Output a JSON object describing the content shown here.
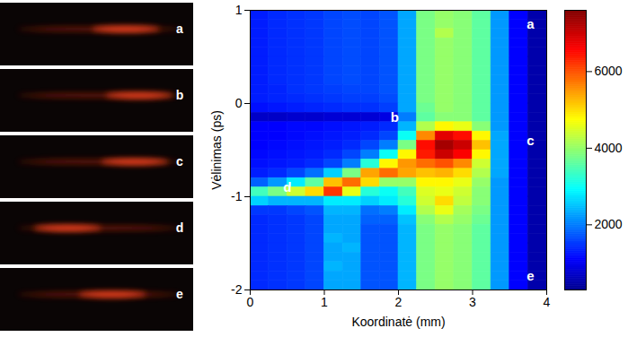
{
  "chart_data": {
    "type": "heatmap",
    "xlabel": "Koordinatė (mm)",
    "ylabel": "Vėlinimas (ps)",
    "xlim": [
      0,
      4
    ],
    "ylim": [
      -2,
      1
    ],
    "xticks": [
      0,
      1,
      2,
      3,
      4
    ],
    "yticks": [
      -2,
      -1,
      0,
      1
    ],
    "x": [
      0.125,
      0.375,
      0.625,
      0.875,
      1.125,
      1.375,
      1.625,
      1.875,
      2.125,
      2.375,
      2.625,
      2.875,
      3.125,
      3.375,
      3.625,
      3.875
    ],
    "y": [
      0.95,
      0.85,
      0.75,
      0.65,
      0.55,
      0.45,
      0.35,
      0.25,
      0.15,
      0.05,
      -0.05,
      -0.15,
      -0.25,
      -0.35,
      -0.45,
      -0.55,
      -0.65,
      -0.75,
      -0.85,
      -0.95,
      -1.05,
      -1.15,
      -1.25,
      -1.35,
      -1.45,
      -1.55,
      -1.65,
      -1.75,
      -1.85,
      -1.95
    ],
    "values": [
      [
        1300,
        1400,
        1450,
        1500,
        1600,
        1650,
        1600,
        1700,
        2300,
        3800,
        4000,
        3900,
        3600,
        2200,
        1100,
        500
      ],
      [
        1300,
        1400,
        1450,
        1500,
        1600,
        1650,
        1600,
        1700,
        2300,
        3800,
        4000,
        3900,
        3600,
        2200,
        1100,
        500
      ],
      [
        1300,
        1400,
        1450,
        1500,
        1600,
        1650,
        1600,
        1700,
        2300,
        3800,
        4200,
        3900,
        3600,
        2200,
        1100,
        500
      ],
      [
        1300,
        1400,
        1450,
        1500,
        1600,
        1650,
        1600,
        1700,
        2300,
        3800,
        4000,
        3900,
        3600,
        2200,
        1100,
        500
      ],
      [
        1300,
        1400,
        1450,
        1500,
        1600,
        1650,
        1600,
        1700,
        2300,
        3800,
        4000,
        3900,
        3600,
        2200,
        1100,
        500
      ],
      [
        1300,
        1400,
        1450,
        1500,
        1600,
        1650,
        1600,
        1700,
        2300,
        3800,
        4000,
        3900,
        3600,
        2200,
        1100,
        500
      ],
      [
        1300,
        1400,
        1450,
        1500,
        1600,
        1650,
        1600,
        1700,
        2300,
        3800,
        4000,
        3900,
        3600,
        2200,
        1100,
        500
      ],
      [
        1300,
        1400,
        1450,
        1500,
        1600,
        1650,
        1600,
        1700,
        2300,
        3800,
        4000,
        3900,
        3600,
        2200,
        1100,
        500
      ],
      [
        1300,
        1350,
        1450,
        1500,
        1550,
        1600,
        1600,
        1700,
        2300,
        3800,
        4000,
        3900,
        3600,
        2200,
        1100,
        500
      ],
      [
        1300,
        1350,
        1400,
        1450,
        1500,
        1550,
        1550,
        1650,
        2300,
        3800,
        4000,
        3900,
        3600,
        2200,
        1100,
        500
      ],
      [
        1200,
        1250,
        1300,
        1350,
        1400,
        1450,
        1450,
        1550,
        2300,
        3700,
        4000,
        3900,
        3600,
        2200,
        1100,
        500
      ],
      [
        700,
        700,
        750,
        750,
        800,
        800,
        800,
        900,
        2000,
        3600,
        3900,
        3900,
        3600,
        2200,
        1100,
        500
      ],
      [
        1100,
        1100,
        1150,
        1150,
        1200,
        1250,
        1300,
        1400,
        2400,
        4200,
        4800,
        4600,
        3900,
        2200,
        1100,
        500
      ],
      [
        1100,
        1100,
        1150,
        1200,
        1250,
        1300,
        1400,
        1600,
        3000,
        5600,
        6800,
        6500,
        4800,
        2300,
        1100,
        500
      ],
      [
        1100,
        1150,
        1200,
        1250,
        1300,
        1400,
        1600,
        2000,
        3800,
        6500,
        7300,
        7000,
        5200,
        2300,
        1100,
        500
      ],
      [
        1150,
        1200,
        1250,
        1300,
        1400,
        1600,
        2000,
        3000,
        4800,
        6400,
        7000,
        6600,
        4800,
        2300,
        1100,
        500
      ],
      [
        1200,
        1250,
        1300,
        1400,
        1600,
        2000,
        3200,
        4800,
        5500,
        5800,
        6000,
        5600,
        4400,
        2300,
        1100,
        500
      ],
      [
        1300,
        1400,
        1600,
        1900,
        2600,
        3800,
        5400,
        5800,
        5400,
        5200,
        5300,
        5000,
        4200,
        2300,
        1100,
        500
      ],
      [
        1800,
        2200,
        2800,
        3600,
        5200,
        5800,
        5000,
        4000,
        4000,
        4800,
        4800,
        4600,
        4000,
        2200,
        1100,
        500
      ],
      [
        3400,
        3800,
        4400,
        5000,
        6200,
        4600,
        3200,
        3000,
        3400,
        4500,
        4600,
        4400,
        3900,
        2200,
        1100,
        500
      ],
      [
        2600,
        2400,
        2400,
        2400,
        2800,
        2800,
        2600,
        2800,
        3200,
        4400,
        5000,
        4300,
        3900,
        2200,
        1100,
        500
      ],
      [
        1500,
        1500,
        1600,
        1700,
        2400,
        2400,
        1900,
        2000,
        2800,
        4200,
        4600,
        4100,
        3800,
        2200,
        1100,
        500
      ],
      [
        1400,
        1450,
        1500,
        1600,
        2300,
        2300,
        1800,
        1800,
        2500,
        3900,
        4200,
        4000,
        3700,
        2200,
        1100,
        500
      ],
      [
        1400,
        1450,
        1500,
        1600,
        2300,
        2300,
        1700,
        1700,
        2400,
        3800,
        4000,
        3900,
        3600,
        2200,
        1100,
        500
      ],
      [
        1400,
        1450,
        1500,
        1600,
        2400,
        2300,
        1700,
        1700,
        2400,
        3800,
        4000,
        3900,
        3600,
        2200,
        1100,
        500
      ],
      [
        1400,
        1450,
        1500,
        1600,
        2300,
        2400,
        1700,
        1700,
        2400,
        3800,
        4000,
        3900,
        3600,
        2200,
        1100,
        500
      ],
      [
        1400,
        1450,
        1500,
        1600,
        2300,
        2300,
        1700,
        1700,
        2400,
        3800,
        4000,
        3900,
        3600,
        2200,
        1100,
        500
      ],
      [
        1400,
        1450,
        1500,
        1600,
        2400,
        2300,
        1700,
        1700,
        2400,
        3800,
        4000,
        3900,
        3600,
        2200,
        1100,
        500
      ],
      [
        1400,
        1450,
        1500,
        1600,
        2300,
        2300,
        1700,
        1700,
        2400,
        3800,
        4000,
        3900,
        3600,
        2200,
        1100,
        500
      ],
      [
        1400,
        1450,
        1500,
        1600,
        2300,
        2300,
        1700,
        1700,
        2400,
        3800,
        4000,
        3900,
        3600,
        2200,
        1100,
        500
      ]
    ],
    "colorbar": {
      "range": [
        300,
        7600
      ],
      "ticks": [
        2000,
        4000,
        6000
      ]
    },
    "annotations": [
      {
        "text": "a",
        "x": 3.78,
        "y": 0.85
      },
      {
        "text": "b",
        "x": 1.95,
        "y": -0.15
      },
      {
        "text": "c",
        "x": 3.78,
        "y": -0.4
      },
      {
        "text": "d",
        "x": 0.5,
        "y": -0.9
      },
      {
        "text": "e",
        "x": 3.78,
        "y": -1.85
      }
    ]
  },
  "image_panel": {
    "labels": [
      "a",
      "b",
      "c",
      "d",
      "e"
    ]
  }
}
